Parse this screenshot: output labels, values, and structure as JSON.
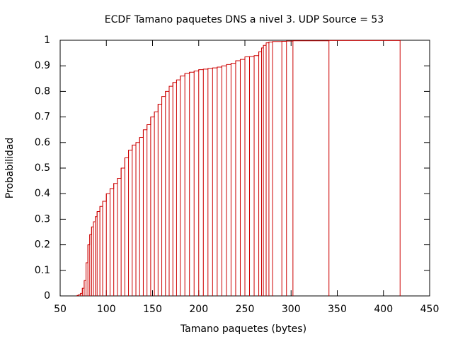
{
  "chart_data": {
    "type": "step",
    "title": "ECDF Tamano paquetes DNS a nivel 3. UDP Source = 53",
    "x_label": "Tamano paquetes (bytes)",
    "y_label": "Probabilidad",
    "color": "#cc0000",
    "xlim": [
      50,
      450
    ],
    "xticks": [
      50,
      100,
      150,
      200,
      250,
      300,
      350,
      400,
      450
    ],
    "ylim": [
      0,
      1
    ],
    "yticks": [
      0,
      0.1,
      0.2,
      0.3,
      0.4,
      0.5,
      0.6,
      0.7,
      0.8,
      0.9,
      1
    ],
    "x": [
      68,
      70,
      72,
      74,
      76,
      78,
      80,
      82,
      84,
      86,
      88,
      90,
      93,
      96,
      100,
      104,
      108,
      112,
      116,
      120,
      124,
      128,
      132,
      136,
      140,
      144,
      148,
      152,
      156,
      160,
      164,
      168,
      172,
      176,
      180,
      185,
      190,
      195,
      200,
      205,
      210,
      215,
      220,
      225,
      230,
      235,
      240,
      245,
      250,
      255,
      260,
      265,
      268,
      270,
      273,
      276,
      280,
      290,
      295,
      302,
      341,
      418
    ],
    "values": [
      0.002,
      0.005,
      0.01,
      0.03,
      0.06,
      0.13,
      0.2,
      0.24,
      0.27,
      0.29,
      0.31,
      0.33,
      0.35,
      0.37,
      0.4,
      0.42,
      0.44,
      0.46,
      0.5,
      0.54,
      0.57,
      0.59,
      0.6,
      0.62,
      0.65,
      0.67,
      0.7,
      0.72,
      0.75,
      0.78,
      0.8,
      0.82,
      0.835,
      0.845,
      0.86,
      0.87,
      0.875,
      0.88,
      0.885,
      0.887,
      0.89,
      0.892,
      0.895,
      0.9,
      0.905,
      0.91,
      0.92,
      0.925,
      0.935,
      0.936,
      0.94,
      0.955,
      0.97,
      0.98,
      0.99,
      0.993,
      0.995,
      0.996,
      0.997,
      0.998,
      0.999,
      1
    ]
  }
}
